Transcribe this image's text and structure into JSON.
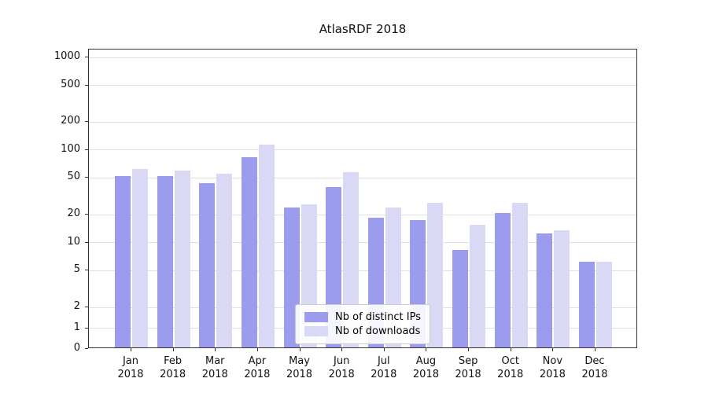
{
  "chart_data": {
    "type": "bar",
    "title": "AtlasRDF 2018",
    "year": "2018",
    "categories": [
      "Jan",
      "Feb",
      "Mar",
      "Apr",
      "May",
      "Jun",
      "Jul",
      "Aug",
      "Sep",
      "Oct",
      "Nov",
      "Dec"
    ],
    "series": [
      {
        "name": "Nb of distinct IPs",
        "color": "#9c9cee",
        "values": [
          50,
          50,
          42,
          80,
          23,
          38,
          18,
          17,
          8,
          20,
          12,
          6
        ]
      },
      {
        "name": "Nb of downloads",
        "color": "#d9d9f6",
        "values": [
          60,
          58,
          53,
          110,
          25,
          55,
          23,
          26,
          15,
          26,
          13,
          6
        ]
      }
    ],
    "yscale": "symlog",
    "yticks": [
      0,
      1,
      2,
      5,
      10,
      20,
      50,
      100,
      200,
      500,
      1000
    ],
    "ylim": [
      0,
      1200
    ],
    "grid": true,
    "legend_position": "lower center",
    "colors": {
      "grid": "#e0e0e0",
      "axis": "#333333",
      "background": "#ffffff"
    }
  }
}
